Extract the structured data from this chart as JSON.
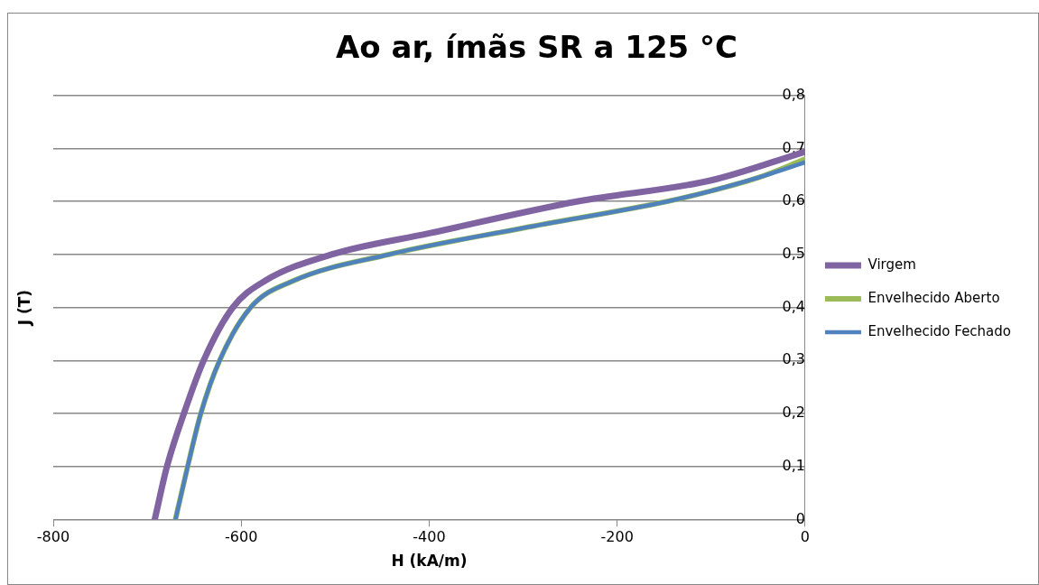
{
  "chart_data": {
    "type": "line",
    "title": "Ao ar, ímãs SR a 125 °C",
    "xlabel": "H (kA/m)",
    "ylabel": "J (T)",
    "xlim": [
      -800,
      0
    ],
    "xticks": [
      -800,
      -600,
      -400,
      -200,
      0
    ],
    "ylim": [
      0,
      0.8
    ],
    "yticks": [
      {
        "value": 0,
        "label": "0"
      },
      {
        "value": 0.1,
        "label": "0,1"
      },
      {
        "value": 0.2,
        "label": "0,2"
      },
      {
        "value": 0.3,
        "label": "0,3"
      },
      {
        "value": 0.4,
        "label": "0,4"
      },
      {
        "value": 0.5,
        "label": "0,5"
      },
      {
        "value": 0.6,
        "label": "0,6"
      },
      {
        "value": 0.7,
        "label": "0,7"
      },
      {
        "value": 0.8,
        "label": "0,8"
      }
    ],
    "grid": "y",
    "legend": "right",
    "marker": "none",
    "line_style": "solid",
    "series": [
      {
        "name": "Virgem",
        "color": "#8064a2",
        "x": [
          -692,
          -679,
          -661,
          -640,
          -609,
          -575,
          -504,
          -400,
          -243,
          -100,
          0
        ],
        "values": [
          0,
          0.1,
          0.2,
          0.3,
          0.4,
          0.45,
          0.5,
          0.54,
          0.6,
          0.64,
          0.694
        ]
      },
      {
        "name": "Envelhecido Aberto",
        "color": "#9bbb59",
        "x": [
          -670,
          -657,
          -643,
          -623,
          -590,
          -545,
          -443,
          -300,
          -147,
          -100,
          -50,
          0
        ],
        "values": [
          0,
          0.1,
          0.2,
          0.3,
          0.4,
          0.45,
          0.5,
          0.55,
          0.6,
          0.62,
          0.645,
          0.68
        ]
      },
      {
        "name": "Envelhecido Fechado",
        "color": "#4f81bd",
        "x": [
          -670,
          -657,
          -643,
          -623,
          -590,
          -545,
          -443,
          -300,
          -147,
          -100,
          -50,
          0
        ],
        "values": [
          0,
          0.1,
          0.2,
          0.3,
          0.4,
          0.45,
          0.5,
          0.55,
          0.6,
          0.62,
          0.645,
          0.674
        ]
      }
    ]
  }
}
